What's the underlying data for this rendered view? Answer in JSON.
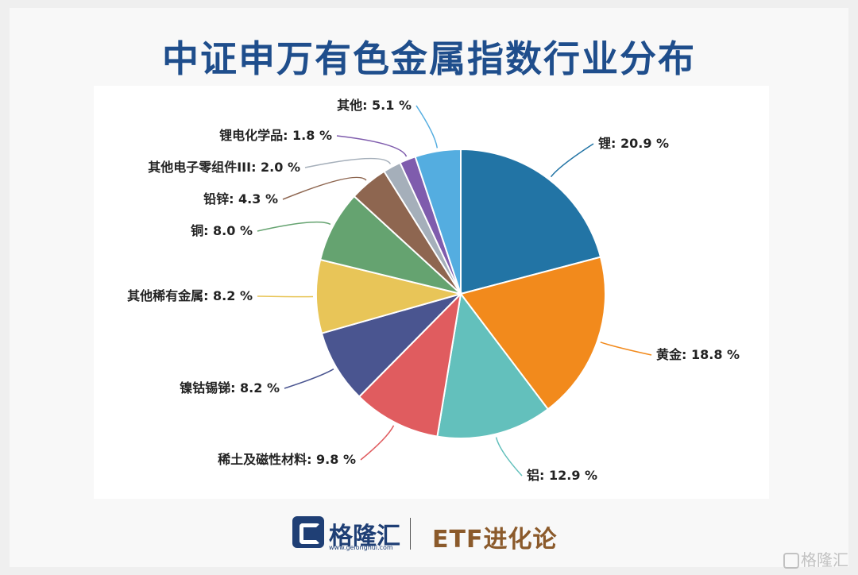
{
  "page": {
    "title": "中证申万有色金属指数行业分布"
  },
  "chart_data": {
    "type": "pie",
    "title": "中证申万有色金属指数行业分布",
    "unit": "%",
    "slices": [
      {
        "label": "锂",
        "value": 20.9,
        "color": "#2274a5"
      },
      {
        "label": "黄金",
        "value": 18.8,
        "color": "#f28a1c"
      },
      {
        "label": "铝",
        "value": 12.9,
        "color": "#63c0bc"
      },
      {
        "label": "稀土及磁性材料",
        "value": 9.8,
        "color": "#e05c5f"
      },
      {
        "label": "镍钴锡锑",
        "value": 8.2,
        "color": "#4a5590"
      },
      {
        "label": "其他稀有金属",
        "value": 8.2,
        "color": "#e8c558"
      },
      {
        "label": "铜",
        "value": 8.0,
        "color": "#65a370"
      },
      {
        "label": "铅锌",
        "value": 4.3,
        "color": "#8e6650"
      },
      {
        "label": "其他电子零组件III",
        "value": 2.0,
        "color": "#a5afba"
      },
      {
        "label": "锂电化学品",
        "value": 1.8,
        "color": "#7f5cad"
      },
      {
        "label": "其他",
        "value": 5.1,
        "color": "#54ade0"
      }
    ],
    "data_labels": [
      "锂: 20.9 %",
      "黄金: 18.8 %",
      "铝: 12.9 %",
      "稀土及磁性材料: 9.8 %",
      "镍钴锡锑: 8.2 %",
      "其他稀有金属: 8.2 %",
      "铜: 8.0 %",
      "铅锌: 4.3 %",
      "其他电子零组件III: 2.0 %",
      "锂电化学品: 1.8 %",
      "其他: 5.1 %"
    ]
  },
  "footer": {
    "logo_name": "格隆汇",
    "logo_url": "www.gelonghui.com",
    "brand_text": "ETF进化论",
    "watermark": "格隆汇"
  }
}
